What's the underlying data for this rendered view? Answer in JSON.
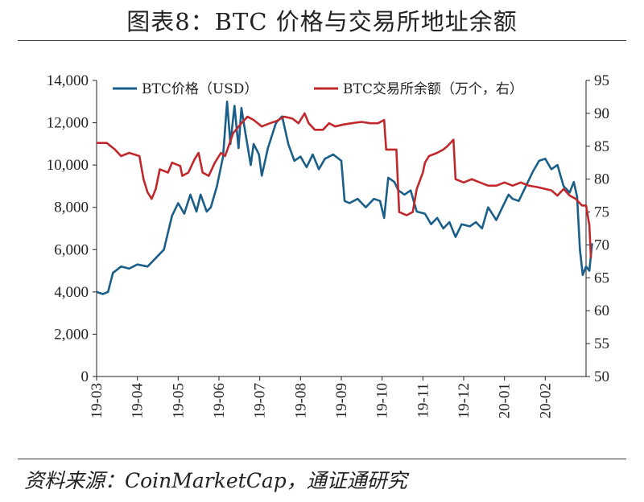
{
  "title": "图表8：BTC 价格与交易所地址余额",
  "source": "资料来源：CoinMarketCap，通证通研究",
  "colors": {
    "price": "#1a5f8a",
    "exchange": "#c0282c"
  },
  "chart_data": {
    "type": "line",
    "x_ticks": [
      "19-03",
      "19-04",
      "19-05",
      "19-06",
      "19-07",
      "19-08",
      "19-09",
      "19-10",
      "19-11",
      "19-12",
      "20-01",
      "20-02"
    ],
    "x_range": [
      0,
      12
    ],
    "y_left": {
      "ticks": [
        "0",
        "2,000",
        "4,000",
        "6,000",
        "8,000",
        "10,000",
        "12,000",
        "14,000"
      ],
      "range": [
        0,
        14000
      ]
    },
    "y_right": {
      "ticks": [
        "50",
        "55",
        "60",
        "65",
        "70",
        "75",
        "80",
        "85",
        "90",
        "95"
      ],
      "range": [
        50,
        95
      ]
    },
    "series": [
      {
        "name": "BTC价格（USD）",
        "axis": "left",
        "points": [
          [
            0.0,
            4000
          ],
          [
            0.15,
            3900
          ],
          [
            0.28,
            4000
          ],
          [
            0.4,
            4900
          ],
          [
            0.6,
            5200
          ],
          [
            0.8,
            5100
          ],
          [
            1.0,
            5300
          ],
          [
            1.25,
            5200
          ],
          [
            1.45,
            5600
          ],
          [
            1.65,
            6000
          ],
          [
            1.85,
            7600
          ],
          [
            2.0,
            8200
          ],
          [
            2.15,
            7700
          ],
          [
            2.3,
            8600
          ],
          [
            2.45,
            7800
          ],
          [
            2.55,
            8600
          ],
          [
            2.7,
            7800
          ],
          [
            2.8,
            8000
          ],
          [
            2.95,
            9000
          ],
          [
            3.1,
            10400
          ],
          [
            3.2,
            13000
          ],
          [
            3.28,
            11000
          ],
          [
            3.38,
            12800
          ],
          [
            3.48,
            10800
          ],
          [
            3.55,
            12700
          ],
          [
            3.65,
            11500
          ],
          [
            3.78,
            10000
          ],
          [
            3.85,
            11000
          ],
          [
            3.98,
            10500
          ],
          [
            4.05,
            9500
          ],
          [
            4.2,
            10800
          ],
          [
            4.4,
            12000
          ],
          [
            4.55,
            12300
          ],
          [
            4.7,
            11000
          ],
          [
            4.85,
            10200
          ],
          [
            5.0,
            10400
          ],
          [
            5.15,
            9900
          ],
          [
            5.3,
            10500
          ],
          [
            5.45,
            9800
          ],
          [
            5.6,
            10300
          ],
          [
            5.8,
            10500
          ],
          [
            6.0,
            10200
          ],
          [
            6.08,
            8300
          ],
          [
            6.2,
            8200
          ],
          [
            6.4,
            8400
          ],
          [
            6.6,
            8000
          ],
          [
            6.8,
            8400
          ],
          [
            6.95,
            8300
          ],
          [
            7.05,
            7500
          ],
          [
            7.15,
            9400
          ],
          [
            7.3,
            9200
          ],
          [
            7.4,
            8800
          ],
          [
            7.55,
            8600
          ],
          [
            7.7,
            8800
          ],
          [
            7.85,
            7800
          ],
          [
            8.05,
            7700
          ],
          [
            8.2,
            7200
          ],
          [
            8.35,
            7500
          ],
          [
            8.5,
            7000
          ],
          [
            8.65,
            7300
          ],
          [
            8.8,
            6600
          ],
          [
            8.95,
            7200
          ],
          [
            9.15,
            7100
          ],
          [
            9.3,
            7300
          ],
          [
            9.45,
            7000
          ],
          [
            9.6,
            8000
          ],
          [
            9.8,
            7400
          ],
          [
            9.95,
            8000
          ],
          [
            10.1,
            8600
          ],
          [
            10.2,
            8400
          ],
          [
            10.35,
            8300
          ],
          [
            10.5,
            8900
          ],
          [
            10.7,
            9700
          ],
          [
            10.85,
            10200
          ],
          [
            11.0,
            10300
          ],
          [
            11.15,
            9800
          ],
          [
            11.3,
            10000
          ],
          [
            11.45,
            9000
          ],
          [
            11.6,
            8700
          ],
          [
            11.7,
            9200
          ],
          [
            11.78,
            8500
          ],
          [
            11.85,
            6000
          ],
          [
            11.92,
            4800
          ],
          [
            12.0,
            5200
          ],
          [
            12.08,
            5000
          ],
          [
            12.15,
            6300
          ]
        ]
      },
      {
        "name": "BTC交易所余额（万个，右）",
        "axis": "right",
        "points": [
          [
            0.0,
            85.5
          ],
          [
            0.25,
            85.5
          ],
          [
            0.45,
            84.5
          ],
          [
            0.6,
            83.5
          ],
          [
            0.8,
            84.0
          ],
          [
            1.05,
            83.5
          ],
          [
            1.15,
            80.0
          ],
          [
            1.25,
            78.0
          ],
          [
            1.35,
            77.0
          ],
          [
            1.45,
            78.5
          ],
          [
            1.55,
            81.5
          ],
          [
            1.75,
            81.0
          ],
          [
            1.85,
            82.5
          ],
          [
            2.05,
            82.0
          ],
          [
            2.1,
            80.5
          ],
          [
            2.25,
            81.0
          ],
          [
            2.4,
            83.0
          ],
          [
            2.5,
            84.0
          ],
          [
            2.6,
            81.0
          ],
          [
            2.75,
            80.5
          ],
          [
            2.9,
            82.5
          ],
          [
            3.05,
            84.0
          ],
          [
            3.15,
            83.5
          ],
          [
            3.35,
            87.0
          ],
          [
            3.55,
            88.5
          ],
          [
            3.7,
            89.5
          ],
          [
            3.85,
            89.0
          ],
          [
            4.05,
            88.0
          ],
          [
            4.25,
            88.5
          ],
          [
            4.4,
            88.8
          ],
          [
            4.6,
            89.5
          ],
          [
            4.8,
            89.2
          ],
          [
            4.95,
            88.5
          ],
          [
            5.1,
            90.0
          ],
          [
            5.2,
            88.5
          ],
          [
            5.35,
            87.5
          ],
          [
            5.55,
            87.5
          ],
          [
            5.7,
            88.5
          ],
          [
            5.85,
            88.0
          ],
          [
            6.05,
            88.3
          ],
          [
            6.25,
            88.5
          ],
          [
            6.5,
            88.7
          ],
          [
            6.7,
            88.5
          ],
          [
            6.9,
            88.5
          ],
          [
            7.05,
            89.0
          ],
          [
            7.1,
            84.5
          ],
          [
            7.35,
            84.5
          ],
          [
            7.42,
            75.0
          ],
          [
            7.6,
            74.5
          ],
          [
            7.75,
            75.0
          ],
          [
            7.85,
            78.5
          ],
          [
            8.0,
            81.0
          ],
          [
            8.05,
            82.5
          ],
          [
            8.15,
            83.5
          ],
          [
            8.35,
            84.0
          ],
          [
            8.5,
            84.5
          ],
          [
            8.6,
            85.0
          ],
          [
            8.75,
            86.0
          ],
          [
            8.8,
            80.0
          ],
          [
            9.0,
            79.5
          ],
          [
            9.2,
            80.0
          ],
          [
            9.4,
            79.5
          ],
          [
            9.6,
            79.0
          ],
          [
            9.8,
            79.0
          ],
          [
            10.0,
            79.5
          ],
          [
            10.2,
            79.0
          ],
          [
            10.4,
            79.5
          ],
          [
            10.6,
            79.0
          ],
          [
            10.8,
            78.8
          ],
          [
            11.0,
            78.5
          ],
          [
            11.15,
            78.3
          ],
          [
            11.3,
            77.5
          ],
          [
            11.45,
            78.5
          ],
          [
            11.6,
            77.5
          ],
          [
            11.75,
            77.0
          ],
          [
            11.9,
            76.0
          ],
          [
            12.0,
            76.0
          ],
          [
            12.08,
            73.0
          ],
          [
            12.12,
            68.0
          ]
        ]
      }
    ]
  }
}
